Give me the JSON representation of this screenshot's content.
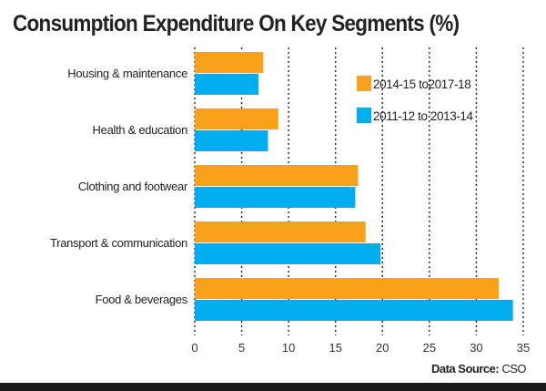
{
  "chart_data": {
    "type": "bar",
    "orientation": "horizontal",
    "title": "Consumption Expenditure On Key Segments (%)",
    "categories": [
      "Housing & maintenance",
      "Health & education",
      "Clothing and footwear",
      "Transport & communication",
      "Food & beverages"
    ],
    "series": [
      {
        "name": "2014-15 to2017-18",
        "color": "#f9a11b",
        "values": [
          7.3,
          8.9,
          17.4,
          18.2,
          32.4
        ]
      },
      {
        "name": "2011-12 to 2013-14",
        "color": "#00aeef",
        "values": [
          6.8,
          7.8,
          17.1,
          19.8,
          33.9
        ]
      }
    ],
    "xlim": [
      0,
      35
    ],
    "xticks": [
      0,
      5,
      10,
      15,
      20,
      25,
      30,
      35
    ],
    "grid": "vertical dotted",
    "legend": "top-right",
    "source_label": "Data Source:",
    "source_value": " CSO"
  }
}
